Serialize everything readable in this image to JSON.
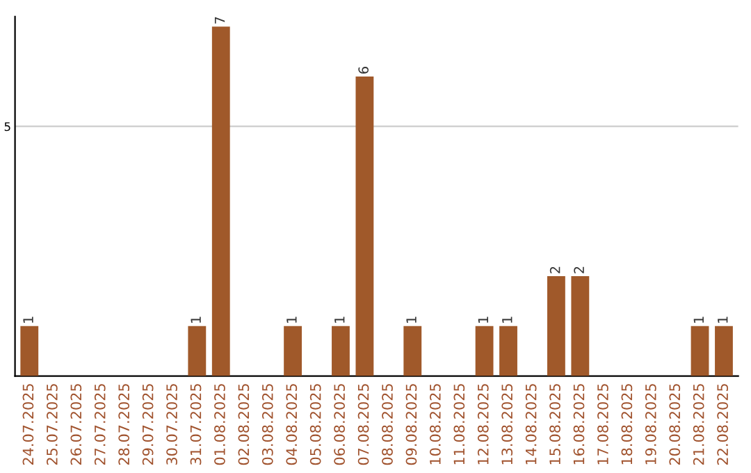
{
  "chart_data": {
    "type": "bar",
    "categories": [
      "24.07.2025",
      "25.07.2025",
      "26.07.2025",
      "27.07.2025",
      "28.07.2025",
      "29.07.2025",
      "30.07.2025",
      "31.07.2025",
      "01.08.2025",
      "02.08.2025",
      "03.08.2025",
      "04.08.2025",
      "05.08.2025",
      "06.08.2025",
      "07.08.2025",
      "08.08.2025",
      "09.08.2025",
      "10.08.2025",
      "11.08.2025",
      "12.08.2025",
      "13.08.2025",
      "14.08.2025",
      "15.08.2025",
      "16.08.2025",
      "17.08.2025",
      "18.08.2025",
      "19.08.2025",
      "20.08.2025",
      "21.08.2025",
      "22.08.2025"
    ],
    "values": [
      1,
      0,
      0,
      0,
      0,
      0,
      0,
      1,
      7,
      0,
      0,
      1,
      0,
      1,
      6,
      0,
      1,
      0,
      0,
      1,
      1,
      0,
      2,
      2,
      0,
      0,
      0,
      0,
      1,
      1
    ],
    "value_labels": [
      "1",
      null,
      null,
      null,
      null,
      null,
      null,
      "1",
      "7",
      null,
      null,
      "1",
      null,
      "1",
      "6",
      null,
      "1",
      null,
      null,
      "1",
      "1",
      null,
      "2",
      "2",
      null,
      null,
      null,
      null,
      "1",
      "1"
    ],
    "color": "#a0592a",
    "ylim": [
      0,
      7.2
    ],
    "yticks": [
      5
    ],
    "grid": "y"
  }
}
